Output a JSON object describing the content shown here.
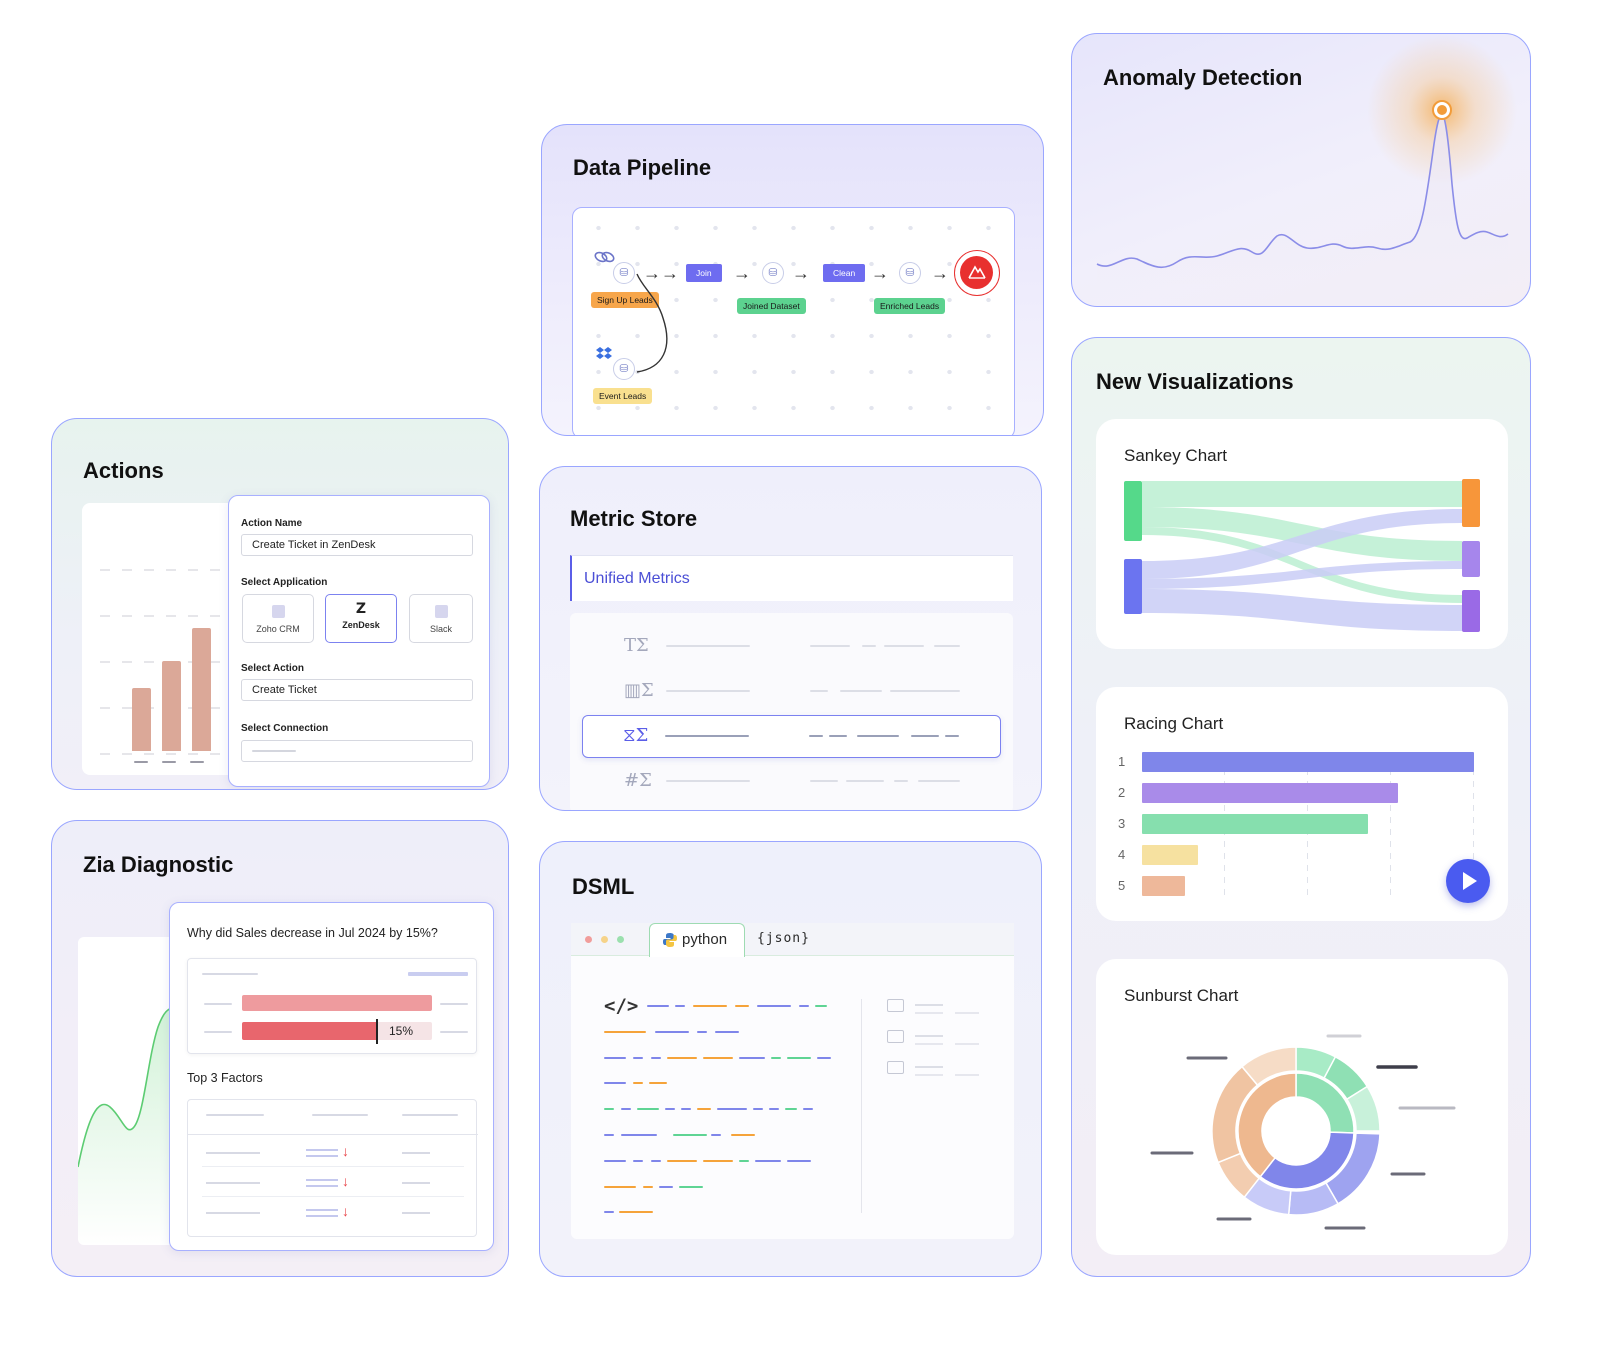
{
  "data_pipeline": {
    "title": "Data Pipeline",
    "sources": [
      "Sign Up Leads",
      "Event Leads"
    ],
    "steps": [
      "Join",
      "Clean"
    ],
    "outputs": [
      "Joined Dataset",
      "Enriched Leads"
    ]
  },
  "anomaly_detection": {
    "title": "Anomaly Detection"
  },
  "actions": {
    "title": "Actions",
    "action_name_label": "Action Name",
    "action_name_value": "Create Ticket in ZenDesk",
    "select_application_label": "Select Application",
    "applications": [
      "Zoho CRM",
      "ZenDesk",
      "Slack"
    ],
    "selected_application": "ZenDesk",
    "zendesk_glyph": "Z",
    "select_action_label": "Select Action",
    "select_action_value": "Create Ticket",
    "select_connection_label": "Select Connection",
    "bar_values": [
      0.42,
      0.6,
      0.82
    ]
  },
  "metric_store": {
    "title": "Metric Store",
    "tab": "Unified Metrics",
    "row_icons": [
      "TΣ",
      "▥Σ",
      "⧖Σ",
      "#Σ"
    ],
    "selected_row": 2
  },
  "new_visualizations": {
    "title": "New Visualizations",
    "sankey_title": "Sankey Chart",
    "racing_title": "Racing Chart",
    "racing_ranks": [
      "1",
      "2",
      "3",
      "4",
      "5"
    ],
    "racing_values": [
      1.0,
      0.77,
      0.68,
      0.17,
      0.13
    ],
    "racing_colors": [
      "#7f86ea",
      "#a98be9",
      "#86dfae",
      "#f6e1a0",
      "#eeb89a"
    ],
    "sunburst_title": "Sunburst Chart"
  },
  "zia": {
    "title": "Zia Diagnostic",
    "question": "Why did Sales decrease in Jul 2024 by 15%?",
    "percent": "15%",
    "factors_label": "Top 3 Factors"
  },
  "dsml": {
    "title": "DSML",
    "tabs": [
      "python",
      "{json}"
    ],
    "active_tab": "python",
    "code_icon": "</>"
  },
  "colors": {
    "accent": "#6e6cf0",
    "card_border": "#9aa6ff",
    "anomaly_orange": "#f5a33a",
    "alert_red": "#e8302f"
  }
}
